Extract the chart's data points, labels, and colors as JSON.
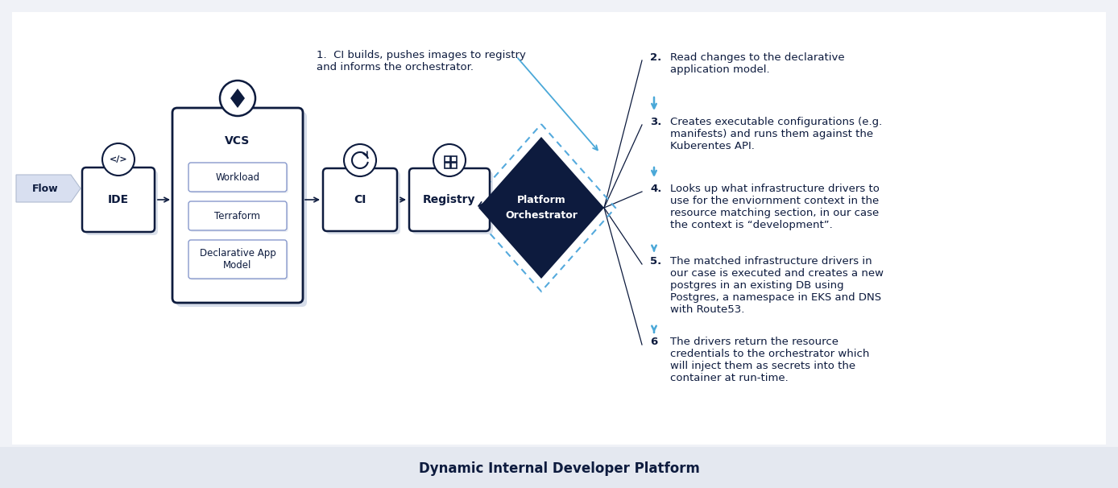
{
  "bg_color": "#f0f2f7",
  "main_bg": "#ffffff",
  "footer_bg": "#e4e8f0",
  "dark_navy": "#0d1b3e",
  "light_blue": "#4aa8d8",
  "border_color": "#0d1b3e",
  "title": "Dynamic Internal Developer Platform",
  "flow_label": "Flow",
  "vcs_sub_boxes": [
    "Workload",
    "Terraform",
    "Declarative App\nModel"
  ],
  "orchestrator_label": "Platform\nOrchestrator",
  "step1_text": "1.  CI builds, pushes images to registry\nand informs the orchestrator.",
  "steps": [
    {
      "num": "2.",
      "text": "Read changes to the declarative\napplication model."
    },
    {
      "num": "3.",
      "text": "Creates executable configurations (e.g.\nmanifests) and runs them against the\nKuberentes API."
    },
    {
      "num": "4.",
      "text": "Looks up what infrastructure drivers to\nuse for the enviornment context in the\nresource matching section, in our case\nthe context is “development”."
    },
    {
      "num": "5.",
      "text": "The matched infrastructure drivers in\nour case is executed and creates a new\npostgres in an existing DB using\nPostgres, a namespace in EKS and DNS\nwith Route53."
    },
    {
      "num": "6",
      "text": "The drivers return the resource\ncredentials to the orchestrator which\nwill inject them as secrets into the\ncontainer at run-time."
    }
  ]
}
